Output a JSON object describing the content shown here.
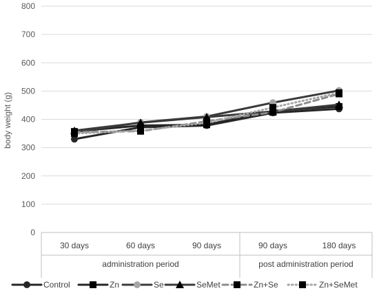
{
  "chart_data": {
    "type": "line",
    "title": "",
    "xlabel": "",
    "ylabel": "body weight (g)",
    "ylim": [
      0,
      800
    ],
    "yticks": [
      0,
      100,
      200,
      300,
      400,
      500,
      600,
      700,
      800
    ],
    "grid": true,
    "legend_position": "bottom",
    "categories": [
      "30 days",
      "60 days",
      "90 days",
      "90 days",
      "180 days"
    ],
    "category_groups": [
      {
        "label": "administration period",
        "span": 3
      },
      {
        "label": "post administration period",
        "span": 2
      }
    ],
    "series": [
      {
        "name": "Control",
        "values": [
          330,
          372,
          378,
          423,
          437
        ],
        "color": "#262626",
        "dash": "solid",
        "marker": "circle"
      },
      {
        "name": "Zn",
        "values": [
          357,
          378,
          381,
          430,
          445
        ],
        "color": "#262626",
        "dash": "solid",
        "marker": "square"
      },
      {
        "name": "Se",
        "values": [
          355,
          389,
          410,
          459,
          502
        ],
        "color": "#3a3a3a",
        "dash": "solid",
        "marker": "circle-light"
      },
      {
        "name": "SeMet",
        "values": [
          360,
          388,
          408,
          428,
          452
        ],
        "color": "#3a3a3a",
        "dash": "solid",
        "marker": "triangle"
      },
      {
        "name": "Zn+Se",
        "values": [
          355,
          358,
          393,
          425,
          490
        ],
        "color": "#8c8c8c",
        "dash": "dash",
        "marker": "square"
      },
      {
        "name": "Zn+SeMet",
        "values": [
          350,
          360,
          388,
          442,
          494
        ],
        "color": "#a6a6a6",
        "dash": "dot",
        "marker": "square"
      }
    ]
  }
}
